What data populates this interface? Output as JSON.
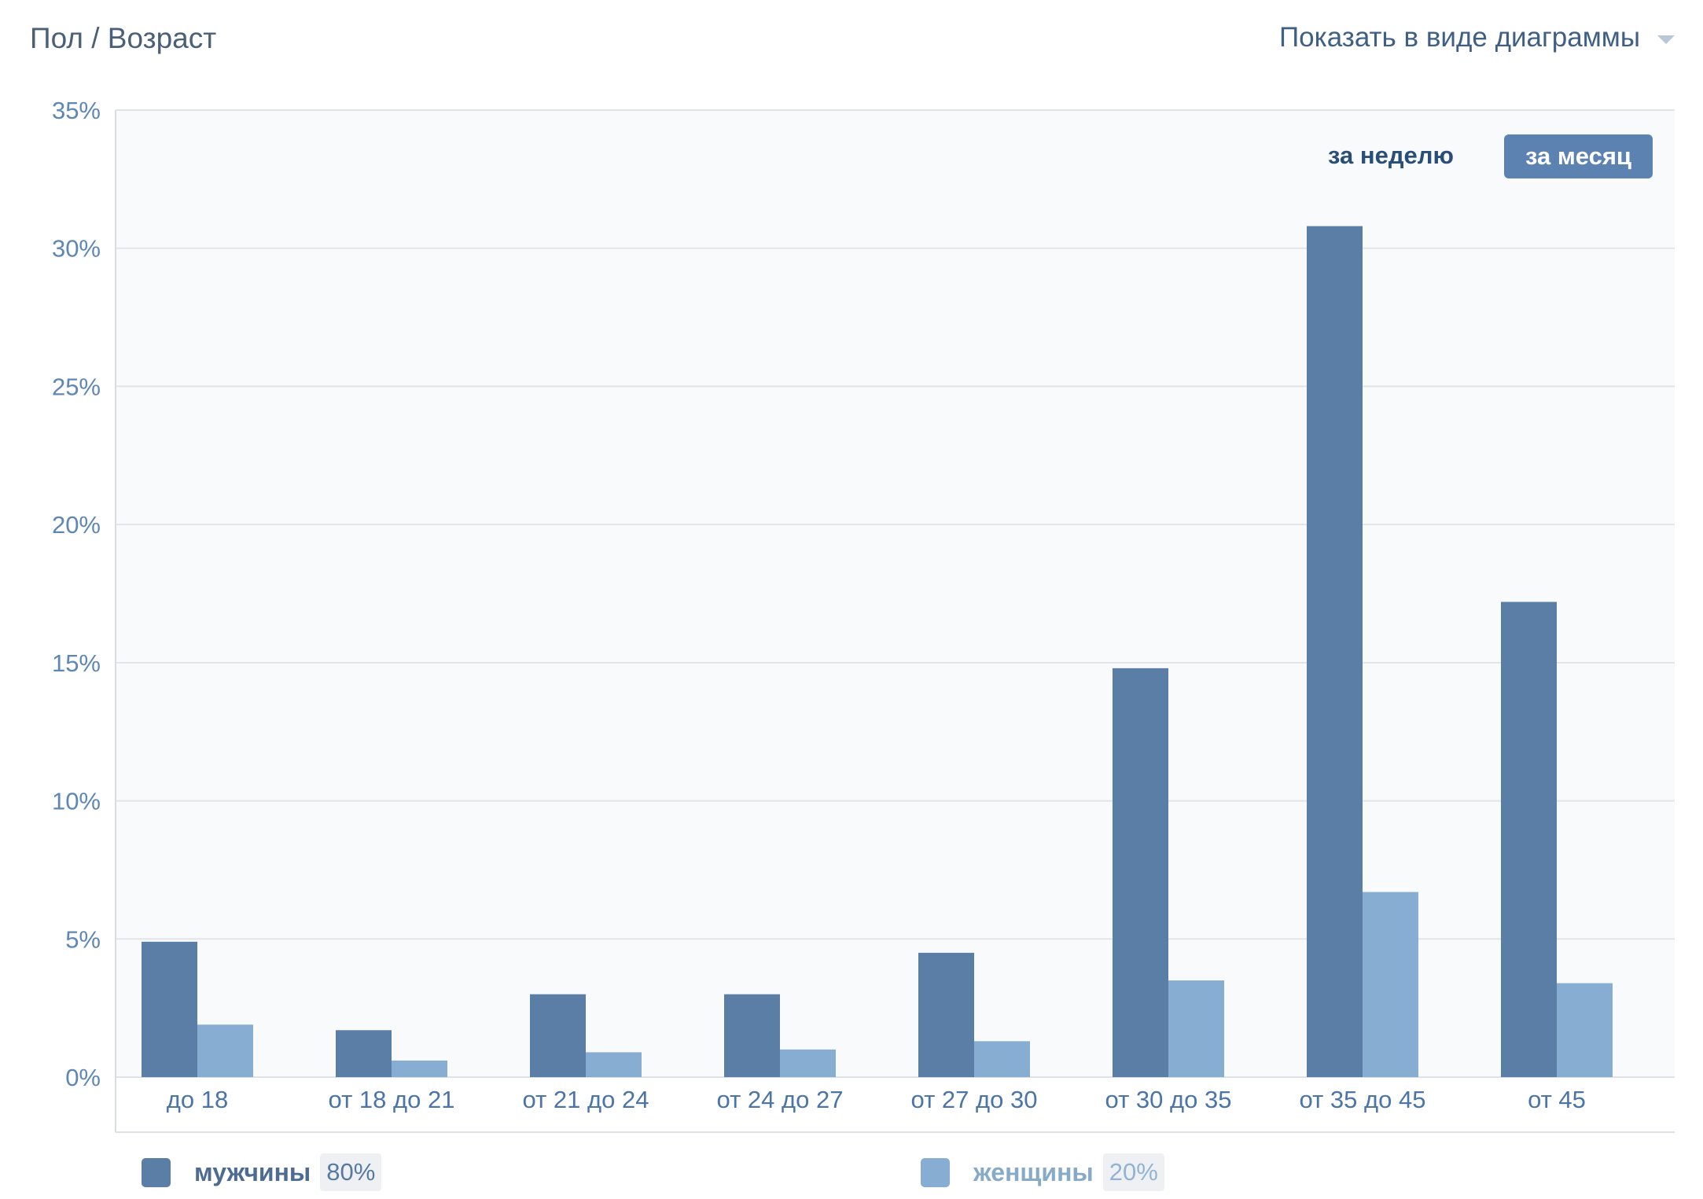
{
  "header": {
    "title": "Пол / Возраст",
    "view_select_label": "Показать в виде диаграммы"
  },
  "period": {
    "week_label": "за неделю",
    "month_label": "за месяц",
    "selected": "за месяц"
  },
  "chart_data": {
    "type": "bar",
    "categories": [
      "до 18",
      "от 18 до 21",
      "от 21 до 24",
      "от 24 до 27",
      "от 27 до 30",
      "от 30 до 35",
      "от 35 до 45",
      "от 45"
    ],
    "series": [
      {
        "name": "мужчины",
        "share": "80%",
        "color": "#5b7ea6",
        "values": [
          4.9,
          1.7,
          3.0,
          3.0,
          4.5,
          14.8,
          30.8,
          17.2
        ]
      },
      {
        "name": "женщины",
        "share": "20%",
        "color": "#87aed2",
        "values": [
          1.9,
          0.6,
          0.9,
          1.0,
          1.3,
          3.5,
          6.7,
          3.4
        ]
      }
    ],
    "yticks": [
      "0%",
      "5%",
      "10%",
      "15%",
      "20%",
      "25%",
      "30%",
      "35%"
    ],
    "ylim": [
      0,
      35
    ],
    "grid": true,
    "legend_position": "bottom"
  },
  "legend": {
    "men_label": "мужчины",
    "men_pct": "80%",
    "women_label": "женщины",
    "women_pct": "20%"
  },
  "colors": {
    "men": "#5b7ea6",
    "women": "#87aed2",
    "men_legend_text": "#4e6c93",
    "women_legend_text": "#87aac9"
  }
}
